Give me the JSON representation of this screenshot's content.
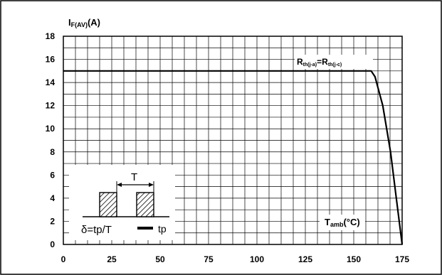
{
  "chart_data": {
    "type": "line",
    "ylabel_main": "I",
    "ylabel_sub": "F(AV)",
    "ylabel_unit": "(A)",
    "xlabel_main": "T",
    "xlabel_sub": "amb",
    "xlabel_unit": "(°C)",
    "xlim": [
      0,
      175
    ],
    "ylim": [
      0,
      18
    ],
    "x_ticks": [
      0,
      25,
      50,
      75,
      100,
      125,
      150,
      175
    ],
    "y_ticks": [
      0,
      2,
      4,
      6,
      8,
      10,
      12,
      14,
      16,
      18
    ],
    "grid": true,
    "series": [
      {
        "name": "Rth(j-a)=Rth(j-c)",
        "x": [
          0,
          159,
          161,
          165,
          169,
          172,
          175
        ],
        "y": [
          15,
          15,
          14.5,
          12,
          8,
          4,
          0
        ]
      }
    ],
    "annotation": {
      "r_main_1": "R",
      "r_sub_1": "th(j-a)",
      "equals": "=",
      "r_main_2": "R",
      "r_sub_2": "th(j-c)"
    },
    "inset": {
      "period_label": "T",
      "duty_formula": "δ=tp/T",
      "pulse_label": "tp"
    }
  }
}
